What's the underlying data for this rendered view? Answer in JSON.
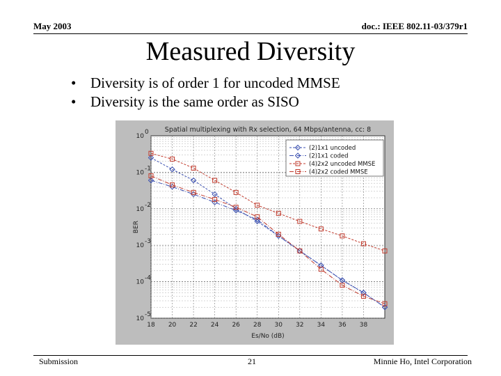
{
  "header": {
    "left": "May 2003",
    "right": "doc.: IEEE 802.11-03/379r1"
  },
  "title": "Measured Diversity",
  "bullets": [
    "Diversity is of order 1 for uncoded MMSE",
    "Diversity is the same order as SISO"
  ],
  "footer": {
    "left": "Submission",
    "page": "21",
    "right": "Minnie Ho, Intel Corporation"
  },
  "chart_data": {
    "type": "line",
    "title": "Spatial multiplexing with Rx selection, 64 Mbps/antenna, cc: 8",
    "xlabel": "Es/No (dB)",
    "ylabel": "BER",
    "yscale": "log",
    "xlim": [
      18,
      40
    ],
    "ylim": [
      1e-05,
      1
    ],
    "x_ticks": [
      18,
      20,
      22,
      24,
      26,
      28,
      30,
      32,
      34,
      36,
      38
    ],
    "y_ticks": [
      {
        "value": 1,
        "base": "10",
        "exp": "0"
      },
      {
        "value": 0.1,
        "base": "10",
        "exp": "-1"
      },
      {
        "value": 0.01,
        "base": "10",
        "exp": "-2"
      },
      {
        "value": 0.001,
        "base": "10",
        "exp": "-3"
      },
      {
        "value": 0.0001,
        "base": "10",
        "exp": "-4"
      },
      {
        "value": 1e-05,
        "base": "10",
        "exp": "-5"
      }
    ],
    "grid": true,
    "legend_position": "top-right",
    "series": [
      {
        "name": "(2)1x1 uncoded",
        "color": "#3a4fb0",
        "dash": "3,2",
        "marker": "diamond",
        "x": [
          18,
          20,
          22,
          24,
          26,
          28,
          30,
          32,
          34,
          36,
          38,
          40
        ],
        "y": [
          0.25,
          0.12,
          0.06,
          0.025,
          0.01,
          0.0045,
          0.0018,
          0.0007,
          0.00028,
          0.00011,
          5e-05,
          2e-05
        ]
      },
      {
        "name": "(2)1x1 coded",
        "color": "#3a4fb0",
        "dash": "6,2,1,2",
        "marker": "diamond",
        "x": [
          18,
          20,
          22,
          24,
          26,
          28,
          30,
          32,
          34,
          36,
          38,
          40
        ],
        "y": [
          0.06,
          0.04,
          0.025,
          0.015,
          0.009,
          0.005,
          0.0018,
          0.0007,
          0.00028,
          0.00011,
          5e-05,
          2e-05
        ]
      },
      {
        "name": "(4)2x2 uncoded MMSE",
        "color": "#c0392b",
        "dash": "3,2",
        "marker": "square",
        "x": [
          18,
          20,
          22,
          24,
          26,
          28,
          30,
          32,
          34,
          36,
          38,
          40
        ],
        "y": [
          0.33,
          0.23,
          0.13,
          0.06,
          0.028,
          0.0125,
          0.0075,
          0.0045,
          0.0028,
          0.0018,
          0.0011,
          0.0007
        ]
      },
      {
        "name": "(4)2x2 coded MMSE",
        "color": "#c0392b",
        "dash": "6,2,1,2",
        "marker": "square",
        "x": [
          18,
          20,
          22,
          24,
          26,
          28,
          30,
          32,
          34,
          36,
          38,
          40
        ],
        "y": [
          0.08,
          0.045,
          0.028,
          0.018,
          0.011,
          0.006,
          0.002,
          0.0007,
          0.00022,
          8e-05,
          4e-05,
          2.5e-05
        ]
      }
    ]
  }
}
